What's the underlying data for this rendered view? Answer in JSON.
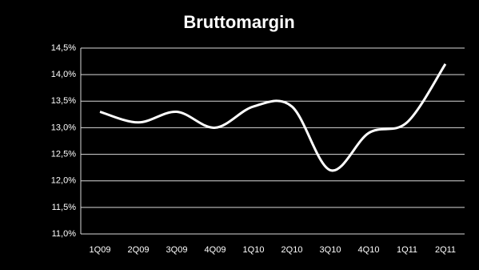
{
  "chart_data": {
    "type": "line",
    "title": "Bruttomargin",
    "categories": [
      "1Q09",
      "2Q09",
      "3Q09",
      "4Q09",
      "1Q10",
      "2Q10",
      "3Q10",
      "4Q10",
      "1Q11",
      "2Q11"
    ],
    "values": [
      13.3,
      13.1,
      13.3,
      13.0,
      13.4,
      13.4,
      12.2,
      12.9,
      13.1,
      14.2
    ],
    "color": "#ffffff",
    "smooth": true,
    "ylim": [
      11.0,
      14.5
    ],
    "yticks": [
      {
        "value": 11.0,
        "label": "11,0%"
      },
      {
        "value": 11.5,
        "label": "11,5%"
      },
      {
        "value": 12.0,
        "label": "12,0%"
      },
      {
        "value": 12.5,
        "label": "12,5%"
      },
      {
        "value": 13.0,
        "label": "13,0%"
      },
      {
        "value": 13.5,
        "label": "13,5%"
      },
      {
        "value": 14.0,
        "label": "14,0%"
      },
      {
        "value": 14.5,
        "label": "14,5%"
      }
    ],
    "grid": true
  }
}
